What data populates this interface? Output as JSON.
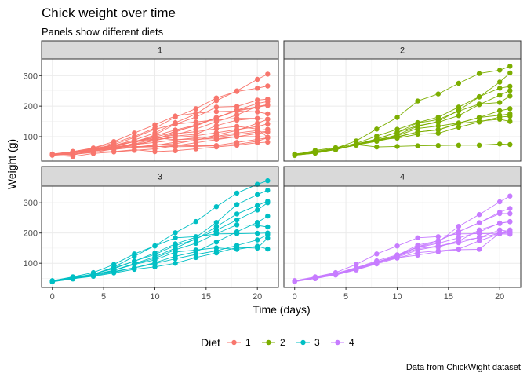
{
  "chart_data": {
    "type": "line",
    "title": "Chick weight over time",
    "subtitle": "Panels show different diets",
    "xlabel": "Time (days)",
    "ylabel": "Weight (g)",
    "caption": "Data from ChickWight dataset",
    "xlim": [
      -1.05,
      22.05
    ],
    "ylim": [
      20,
      355
    ],
    "x_ticks": [
      0,
      5,
      10,
      15,
      20
    ],
    "y_ticks": [
      100,
      200,
      300
    ],
    "grid": true,
    "legend": {
      "title": "Diet",
      "position": "bottom",
      "entries": [
        {
          "label": "1",
          "color": "#F8766D"
        },
        {
          "label": "2",
          "color": "#7CAE00"
        },
        {
          "label": "3",
          "color": "#00BFC4"
        },
        {
          "label": "4",
          "color": "#C77CFF"
        }
      ]
    },
    "x": [
      0,
      2,
      4,
      6,
      8,
      10,
      12,
      14,
      16,
      18,
      20,
      21
    ],
    "panels": [
      {
        "label": "1",
        "color": "#F8766D",
        "series": [
          {
            "values": [
              42,
              51,
              59,
              64,
              76,
              93,
              106,
              125,
              149,
              171,
              199,
              205
            ]
          },
          {
            "values": [
              40,
              49,
              58,
              72,
              84,
              103,
              122,
              138,
              162,
              187,
              209,
              215
            ]
          },
          {
            "values": [
              43,
              39,
              55,
              67,
              84,
              99,
              115,
              138,
              163,
              187,
              198,
              202
            ]
          },
          {
            "values": [
              42,
              49,
              56,
              67,
              74,
              87,
              102,
              108,
              136,
              154,
              160,
              157
            ]
          },
          {
            "values": [
              41,
              42,
              48,
              60,
              79,
              106,
              141,
              164,
              197,
              199,
              220,
              223
            ]
          },
          {
            "values": [
              41,
              49,
              59,
              74,
              97,
              124,
              141,
              148,
              155,
              160,
              160,
              157
            ]
          },
          {
            "values": [
              41,
              49,
              57,
              71,
              89,
              112,
              146,
              174,
              218,
              250,
              288,
              305
            ]
          },
          {
            "values": [
              42,
              50,
              61,
              71,
              84,
              93,
              110,
              116,
              126,
              134,
              125,
              98
            ]
          },
          {
            "values": [
              42,
              51,
              59,
              68,
              85,
              96,
              90,
              92,
              93,
              100,
              100,
              98
            ]
          },
          {
            "values": [
              41,
              44,
              52,
              63,
              74,
              81,
              89,
              96,
              101,
              112,
              120,
              124
            ]
          },
          {
            "values": [
              43,
              51,
              63,
              84,
              112,
              139,
              168,
              177,
              182,
              184,
              181,
              175
            ]
          },
          {
            "values": [
              41,
              49,
              56,
              62,
              72,
              88,
              119,
              135,
              162,
              185,
              195,
              205
            ]
          },
          {
            "values": [
              41,
              48,
              53,
              60,
              65,
              67,
              71,
              70,
              71,
              81,
              91,
              96
            ]
          },
          {
            "values": [
              41,
              49,
              62,
              79,
              101,
              128,
              164,
              192,
              227,
              248,
              259,
              266
            ]
          },
          {
            "values": [
              41,
              49,
              56,
              64,
              68,
              68,
              67,
              68,
              70,
              75,
              85,
              96
            ]
          },
          {
            "values": [
              41,
              45,
              49,
              51,
              57,
              51,
              54,
              60,
              66,
              72,
              80,
              82
            ]
          },
          {
            "values": [
              42,
              51,
              61,
              72,
              83,
              89,
              98,
              103,
              113,
              123,
              133,
              142
            ]
          },
          {
            "values": [
              39,
              35,
              45,
              50,
              55,
              60,
              70,
              80,
              90,
              100,
              110,
              115
            ]
          },
          {
            "values": [
              43,
              48,
              55,
              62,
              65,
              71,
              82,
              88,
              106,
              120,
              144,
              157
            ]
          },
          {
            "values": [
              41,
              47,
              54,
              58,
              65,
              73,
              77,
              89,
              98,
              107,
              115,
              117
            ]
          }
        ]
      },
      {
        "label": "2",
        "color": "#7CAE00",
        "series": [
          {
            "values": [
              40,
              50,
              62,
              86,
              125,
              163,
              217,
              240,
              275,
              307,
              318,
              331
            ]
          },
          {
            "values": [
              41,
              55,
              64,
              77,
              90,
              95,
              108,
              111,
              131,
              148,
              164,
              167
            ]
          },
          {
            "values": [
              43,
              52,
              61,
              73,
              90,
              103,
              127,
              135,
              145,
              163,
              170,
              175
            ]
          },
          {
            "values": [
              42,
              52,
              58,
              74,
              66,
              68,
              70,
              71,
              72,
              72,
              76,
              74
            ]
          },
          {
            "values": [
              40,
              49,
              62,
              78,
              102,
              124,
              146,
              164,
              197,
              231,
              259,
              265
            ]
          },
          {
            "values": [
              42,
              48,
              57,
              74,
              93,
              114,
              136,
              147,
              169,
              205,
              236,
              251
            ]
          },
          {
            "values": [
              39,
              46,
              58,
              73,
              87,
              100,
              115,
              123,
              144,
              163,
              185,
              192
            ]
          },
          {
            "values": [
              39,
              46,
              58,
              73,
              92,
              114,
              145,
              156,
              184,
              207,
              212,
              233
            ]
          },
          {
            "values": [
              39,
              48,
              59,
              74,
              87,
              106,
              134,
              150,
              187,
              230,
              279,
              309
            ]
          },
          {
            "values": [
              42,
              48,
              59,
              72,
              85,
              98,
              115,
              122,
              143,
              151,
              157,
              150
            ]
          }
        ]
      },
      {
        "label": "3",
        "color": "#00BFC4",
        "series": [
          {
            "values": [
              42,
              53,
              62,
              73,
              85,
              102,
              123,
              138,
              170,
              204,
              235,
              256
            ]
          },
          {
            "values": [
              41,
              49,
              65,
              82,
              107,
              129,
              159,
              179,
              221,
              263,
              291,
              305
            ]
          },
          {
            "values": [
              39,
              50,
              63,
              77,
              96,
              111,
              137,
              144,
              151,
              146,
              156,
              147
            ]
          },
          {
            "values": [
              41,
              49,
              63,
              85,
              107,
              134,
              164,
              186,
              235,
              294,
              327,
              341
            ]
          },
          {
            "values": [
              41,
              53,
              64,
              87,
              123,
              158,
              201,
              238,
              287,
              332,
              361,
              373
            ]
          },
          {
            "values": [
              39,
              48,
              61,
              76,
              98,
              116,
              145,
              166,
              198,
              227,
              225,
              220
            ]
          },
          {
            "values": [
              39,
              49,
              57,
              68,
              80,
              88,
              100,
              119,
              134,
              152,
              150,
              183
            ]
          },
          {
            "values": [
              39,
              51,
              61,
              77,
              99,
              121,
              150,
              181,
              209,
              243,
              276,
              300
            ]
          },
          {
            "values": [
              42,
              49,
              59,
              71,
              85,
              99,
              115,
              129,
              141,
              159,
              177,
              195
            ]
          },
          {
            "values": [
              42,
              55,
              69,
              96,
              131,
              157,
              184,
              188,
              197,
              198,
              199,
              200
            ]
          }
        ]
      },
      {
        "label": "4",
        "color": "#C77CFF",
        "series": [
          {
            "values": [
              42,
              51,
              66,
              85,
              103,
              124,
              155,
              153,
              175,
              184,
              199,
              204
            ]
          },
          {
            "values": [
              42,
              49,
              63,
              84,
              103,
              126,
              160,
              174,
              204,
              234,
              269,
              281
            ]
          },
          {
            "values": [
              42,
              55,
              69,
              96,
              131,
              157,
              184,
              188,
              197,
              198,
              199,
              200
            ]
          },
          {
            "values": [
              42,
              51,
              65,
              86,
              103,
              118,
              127,
              138,
              145,
              146,
              200,
              210
            ]
          },
          {
            "values": [
              41,
              50,
              61,
              78,
              98,
              117,
              135,
              141,
              147,
              174,
              197,
              196
            ]
          },
          {
            "values": [
              40,
              52,
              62,
              82,
              101,
              120,
              144,
              156,
              173,
              210,
              231,
              238
            ]
          },
          {
            "values": [
              41,
              53,
              66,
              79,
              100,
              123,
              148,
              157,
              168,
              185,
              210,
              205
            ]
          },
          {
            "values": [
              39,
              50,
              62,
              80,
              104,
              125,
              154,
              170,
              222,
              261,
              303,
              322
            ]
          },
          {
            "values": [
              40,
              53,
              64,
              85,
              108,
              128,
              152,
              166,
              184,
              203,
              233,
              237
            ]
          },
          {
            "values": [
              41,
              54,
              67,
              84,
              105,
              122,
              155,
              175,
              205,
              234,
              264,
              264
            ]
          }
        ]
      }
    ]
  }
}
